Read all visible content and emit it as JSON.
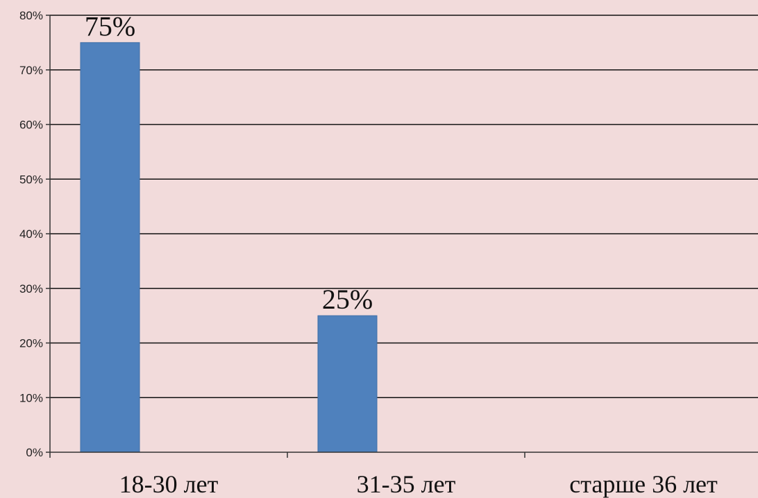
{
  "chart_data": {
    "type": "bar",
    "categories": [
      "18-30 лет",
      "31-35 лет",
      "старше 36 лет"
    ],
    "values": [
      75,
      25,
      0
    ],
    "data_labels": [
      "75%",
      "25%",
      ""
    ],
    "yticks": [
      "0%",
      "10%",
      "20%",
      "30%",
      "40%",
      "50%",
      "60%",
      "70%",
      "80%"
    ],
    "ylim": [
      0,
      80
    ],
    "grid": true,
    "bar_color": "#4f81bd",
    "background_color": "#f2dbdb"
  }
}
